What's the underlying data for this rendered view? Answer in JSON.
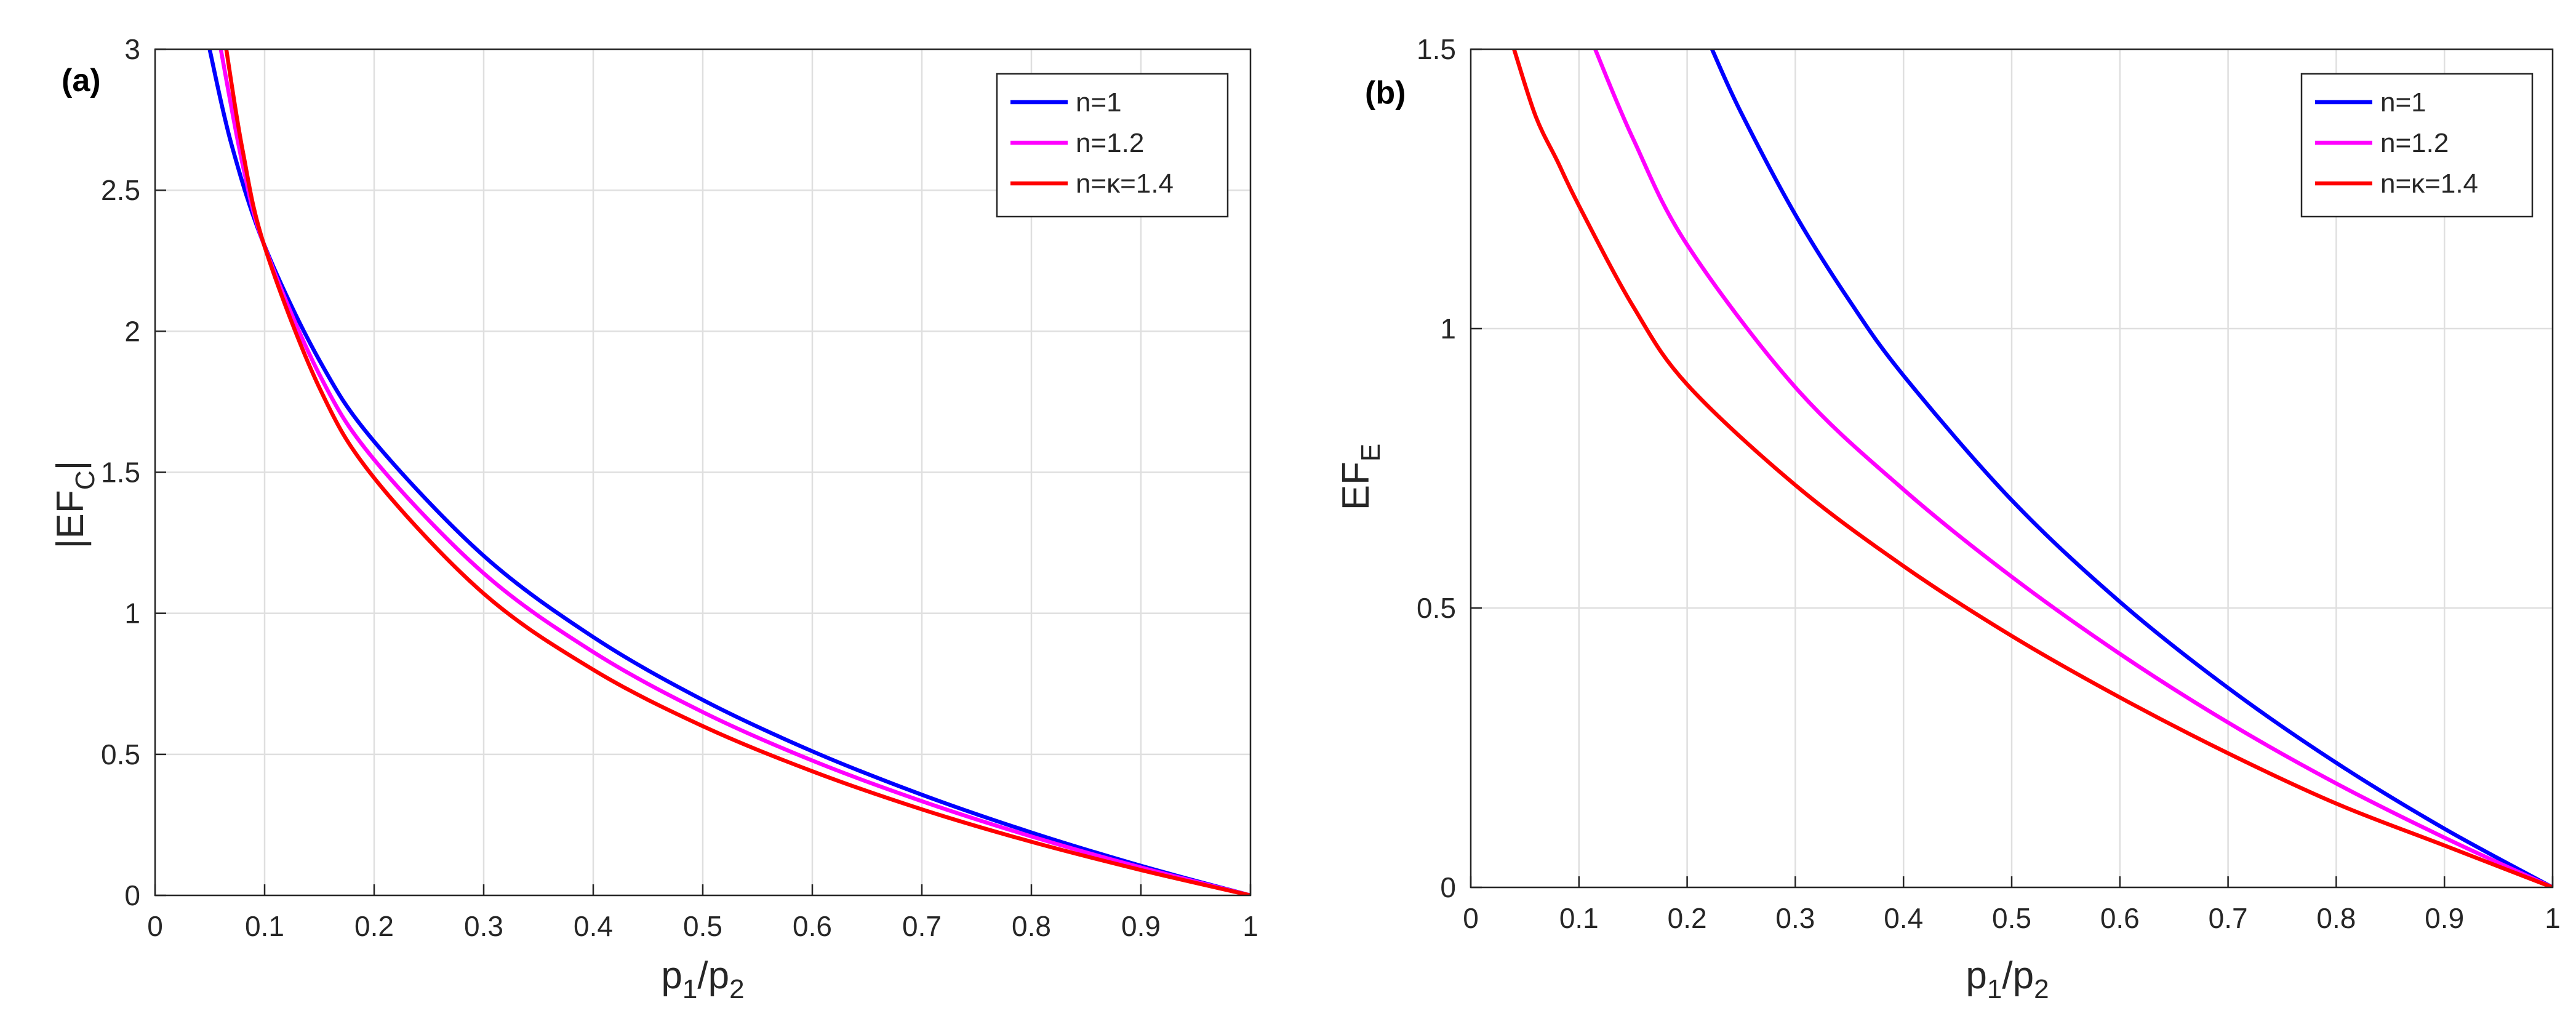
{
  "chart_data": [
    {
      "type": "line",
      "panel_label": "(a)",
      "ylabel_main": "|EF",
      "ylabel_sub": "C",
      "ylabel_tail": "|",
      "xlabel_main": "p",
      "xlabel_sub1": "1",
      "xlabel_mid": "/p",
      "xlabel_sub2": "2",
      "xlim": [
        0,
        1
      ],
      "ylim": [
        0,
        3
      ],
      "xticks": [
        0,
        0.1,
        0.2,
        0.3,
        0.4,
        0.5,
        0.6,
        0.7,
        0.8,
        0.9,
        1
      ],
      "xtick_labels": [
        "0",
        "0.1",
        "0.2",
        "0.3",
        "0.4",
        "0.5",
        "0.6",
        "0.7",
        "0.8",
        "0.9",
        "1"
      ],
      "yticks": [
        0,
        0.5,
        1,
        1.5,
        2,
        2.5,
        3
      ],
      "ytick_labels": [
        "0",
        "0.5",
        "1",
        "1.5",
        "2",
        "2.5",
        "3"
      ],
      "grid": true,
      "legend_position": "top-right",
      "series": [
        {
          "name": "n=1",
          "color": "#0000ff",
          "x": [
            0.05,
            0.07,
            0.1,
            0.15,
            0.2,
            0.3,
            0.4,
            0.5,
            0.6,
            0.7,
            0.8,
            0.9,
            1.0
          ],
          "y": [
            2.996,
            2.659,
            2.303,
            1.897,
            1.609,
            1.204,
            0.916,
            0.693,
            0.511,
            0.357,
            0.223,
            0.105,
            0.0
          ]
        },
        {
          "name": "n=1.2",
          "color": "#ff00ff",
          "x": [
            0.06,
            0.08,
            0.1,
            0.15,
            0.2,
            0.3,
            0.4,
            0.5,
            0.6,
            0.7,
            0.8,
            0.9,
            1.0
          ],
          "y": [
            3.0,
            2.59,
            2.301,
            1.847,
            1.545,
            1.142,
            0.863,
            0.65,
            0.478,
            0.334,
            0.209,
            0.099,
            0.0
          ]
        },
        {
          "name": "n=κ=1.4",
          "color": "#ff0000",
          "x": [
            0.065,
            0.08,
            0.1,
            0.15,
            0.2,
            0.3,
            0.4,
            0.5,
            0.6,
            0.7,
            0.8,
            0.9,
            1.0
          ],
          "y": [
            3.0,
            2.64,
            2.3,
            1.8,
            1.48,
            1.07,
            0.8,
            0.6,
            0.44,
            0.305,
            0.19,
            0.09,
            0.0
          ]
        }
      ]
    },
    {
      "type": "line",
      "panel_label": "(b)",
      "ylabel_main": "EF",
      "ylabel_sub": "E",
      "ylabel_tail": "",
      "xlabel_main": "p",
      "xlabel_sub1": "1",
      "xlabel_mid": "/p",
      "xlabel_sub2": "2",
      "xlim": [
        0,
        1
      ],
      "ylim": [
        0,
        1.5
      ],
      "xticks": [
        0,
        0.1,
        0.2,
        0.3,
        0.4,
        0.5,
        0.6,
        0.7,
        0.8,
        0.9,
        1
      ],
      "xtick_labels": [
        "0",
        "0.1",
        "0.2",
        "0.3",
        "0.4",
        "0.5",
        "0.6",
        "0.7",
        "0.8",
        "0.9",
        "1"
      ],
      "yticks": [
        0,
        0.5,
        1,
        1.5
      ],
      "ytick_labels": [
        "0",
        "0.5",
        "1",
        "1.5"
      ],
      "grid": true,
      "legend_position": "top-right",
      "series": [
        {
          "name": "n=1",
          "color": "#0000ff",
          "x": [
            0.223,
            0.25,
            0.3,
            0.35,
            0.4,
            0.5,
            0.6,
            0.7,
            0.8,
            0.9,
            1.0
          ],
          "y": [
            1.5,
            1.386,
            1.204,
            1.05,
            0.916,
            0.693,
            0.511,
            0.357,
            0.223,
            0.105,
            0.0
          ]
        },
        {
          "name": "n=1.2",
          "color": "#ff00ff",
          "x": [
            0.115,
            0.15,
            0.2,
            0.3,
            0.4,
            0.5,
            0.6,
            0.7,
            0.8,
            0.9,
            1.0
          ],
          "y": [
            1.5,
            1.34,
            1.15,
            0.895,
            0.712,
            0.556,
            0.418,
            0.295,
            0.186,
            0.089,
            0.0
          ]
        },
        {
          "name": "n=κ=1.4",
          "color": "#ff0000",
          "x": [
            0.04,
            0.06,
            0.08,
            0.1,
            0.15,
            0.2,
            0.3,
            0.4,
            0.5,
            0.6,
            0.7,
            0.8,
            0.9,
            1.0
          ],
          "y": [
            1.5,
            1.38,
            1.3,
            1.22,
            1.04,
            0.9,
            0.72,
            0.575,
            0.45,
            0.34,
            0.24,
            0.15,
            0.075,
            0.0
          ]
        }
      ]
    }
  ]
}
